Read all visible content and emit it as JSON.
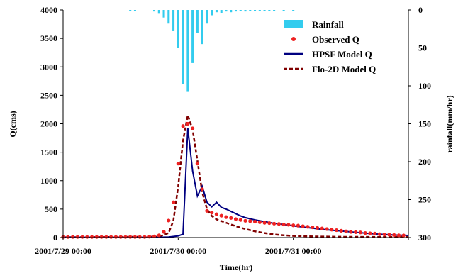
{
  "chart_data": {
    "type": "bar+line+scatter",
    "title": "",
    "xlabel": "Time(hr)",
    "ylabel_left": "Q(cms)",
    "ylabel_right": "rainfall(mm/hr)",
    "x_range_hours": [
      0,
      72
    ],
    "x_ticks": [
      {
        "hour": 0,
        "label": "2001/7/29 00:00"
      },
      {
        "hour": 24,
        "label": "2001/7/30 00:00"
      },
      {
        "hour": 48,
        "label": "2001/7/31 00:00"
      }
    ],
    "ylim_left": [
      0,
      4000
    ],
    "yticks_left": [
      0,
      500,
      1000,
      1500,
      2000,
      2500,
      3000,
      3500,
      4000
    ],
    "ylim_right_reversed": [
      0,
      300
    ],
    "yticks_right": [
      0,
      50,
      100,
      150,
      200,
      250,
      300
    ],
    "legend": {
      "placement": "top-right",
      "items": [
        "Rainfall",
        "Observed Q",
        "HPSF Model Q",
        "Flo-2D Model Q"
      ]
    },
    "colors": {
      "rainfall": "#33ccee",
      "observed": "#ee2222",
      "hpsf": "#000080",
      "flo2d": "#800000"
    },
    "series": {
      "rainfall": [
        {
          "hour": 14,
          "value": 1
        },
        {
          "hour": 15,
          "value": 1
        },
        {
          "hour": 19,
          "value": 2
        },
        {
          "hour": 20,
          "value": 5
        },
        {
          "hour": 21,
          "value": 10
        },
        {
          "hour": 22,
          "value": 18
        },
        {
          "hour": 23,
          "value": 28
        },
        {
          "hour": 24,
          "value": 50
        },
        {
          "hour": 25,
          "value": 98
        },
        {
          "hour": 26,
          "value": 108
        },
        {
          "hour": 27,
          "value": 70
        },
        {
          "hour": 28,
          "value": 30
        },
        {
          "hour": 29,
          "value": 45
        },
        {
          "hour": 30,
          "value": 18
        },
        {
          "hour": 31,
          "value": 7
        },
        {
          "hour": 32,
          "value": 3
        },
        {
          "hour": 33,
          "value": 4
        },
        {
          "hour": 34,
          "value": 2
        },
        {
          "hour": 35,
          "value": 3
        },
        {
          "hour": 36,
          "value": 2
        },
        {
          "hour": 37,
          "value": 1
        },
        {
          "hour": 38,
          "value": 2
        },
        {
          "hour": 39,
          "value": 1
        },
        {
          "hour": 40,
          "value": 1
        },
        {
          "hour": 41,
          "value": 1
        },
        {
          "hour": 42,
          "value": 1
        },
        {
          "hour": 43,
          "value": 1
        },
        {
          "hour": 44,
          "value": 1
        },
        {
          "hour": 46,
          "value": 1
        },
        {
          "hour": 48,
          "value": 1
        }
      ],
      "observed_q": [
        {
          "hour": 0,
          "value": 10
        },
        {
          "hour": 1,
          "value": 10
        },
        {
          "hour": 2,
          "value": 10
        },
        {
          "hour": 3,
          "value": 10
        },
        {
          "hour": 4,
          "value": 10
        },
        {
          "hour": 5,
          "value": 10
        },
        {
          "hour": 6,
          "value": 10
        },
        {
          "hour": 7,
          "value": 10
        },
        {
          "hour": 8,
          "value": 10
        },
        {
          "hour": 9,
          "value": 10
        },
        {
          "hour": 10,
          "value": 10
        },
        {
          "hour": 11,
          "value": 10
        },
        {
          "hour": 12,
          "value": 10
        },
        {
          "hour": 13,
          "value": 10
        },
        {
          "hour": 14,
          "value": 10
        },
        {
          "hour": 15,
          "value": 10
        },
        {
          "hour": 16,
          "value": 10
        },
        {
          "hour": 17,
          "value": 10
        },
        {
          "hour": 18,
          "value": 15
        },
        {
          "hour": 19,
          "value": 20
        },
        {
          "hour": 20,
          "value": 40
        },
        {
          "hour": 21,
          "value": 100
        },
        {
          "hour": 22,
          "value": 300
        },
        {
          "hour": 23,
          "value": 620
        },
        {
          "hour": 24,
          "value": 1300
        },
        {
          "hour": 25,
          "value": 1960
        },
        {
          "hour": 26,
          "value": 2000
        },
        {
          "hour": 27,
          "value": 1920
        },
        {
          "hour": 28,
          "value": 1300
        },
        {
          "hour": 29,
          "value": 850
        },
        {
          "hour": 30,
          "value": 470
        },
        {
          "hour": 31,
          "value": 440
        },
        {
          "hour": 32,
          "value": 410
        },
        {
          "hour": 33,
          "value": 385
        },
        {
          "hour": 34,
          "value": 360
        },
        {
          "hour": 35,
          "value": 345
        },
        {
          "hour": 36,
          "value": 325
        },
        {
          "hour": 37,
          "value": 310
        },
        {
          "hour": 38,
          "value": 295
        },
        {
          "hour": 39,
          "value": 290
        },
        {
          "hour": 40,
          "value": 280
        },
        {
          "hour": 41,
          "value": 270
        },
        {
          "hour": 42,
          "value": 260
        },
        {
          "hour": 43,
          "value": 255
        },
        {
          "hour": 44,
          "value": 245
        },
        {
          "hour": 45,
          "value": 240
        },
        {
          "hour": 46,
          "value": 230
        },
        {
          "hour": 47,
          "value": 225
        },
        {
          "hour": 48,
          "value": 215
        },
        {
          "hour": 49,
          "value": 210
        },
        {
          "hour": 50,
          "value": 200
        },
        {
          "hour": 51,
          "value": 190
        },
        {
          "hour": 52,
          "value": 180
        },
        {
          "hour": 53,
          "value": 170
        },
        {
          "hour": 54,
          "value": 160
        },
        {
          "hour": 55,
          "value": 150
        },
        {
          "hour": 56,
          "value": 140
        },
        {
          "hour": 57,
          "value": 130
        },
        {
          "hour": 58,
          "value": 120
        },
        {
          "hour": 59,
          "value": 110
        },
        {
          "hour": 60,
          "value": 100
        },
        {
          "hour": 61,
          "value": 95
        },
        {
          "hour": 62,
          "value": 90
        },
        {
          "hour": 63,
          "value": 80
        },
        {
          "hour": 64,
          "value": 75
        },
        {
          "hour": 65,
          "value": 70
        },
        {
          "hour": 66,
          "value": 60
        },
        {
          "hour": 67,
          "value": 55
        },
        {
          "hour": 68,
          "value": 50
        },
        {
          "hour": 69,
          "value": 45
        },
        {
          "hour": 70,
          "value": 40
        },
        {
          "hour": 71,
          "value": 38
        }
      ],
      "hpsf_model_q": [
        {
          "hour": 0,
          "value": 5
        },
        {
          "hour": 20,
          "value": 5
        },
        {
          "hour": 22,
          "value": 10
        },
        {
          "hour": 24,
          "value": 30
        },
        {
          "hour": 25,
          "value": 60
        },
        {
          "hour": 26,
          "value": 1920
        },
        {
          "hour": 27,
          "value": 1170
        },
        {
          "hour": 28,
          "value": 730
        },
        {
          "hour": 29,
          "value": 900
        },
        {
          "hour": 30,
          "value": 620
        },
        {
          "hour": 31,
          "value": 540
        },
        {
          "hour": 32,
          "value": 620
        },
        {
          "hour": 33,
          "value": 530
        },
        {
          "hour": 34,
          "value": 500
        },
        {
          "hour": 35,
          "value": 460
        },
        {
          "hour": 36,
          "value": 420
        },
        {
          "hour": 37,
          "value": 380
        },
        {
          "hour": 38,
          "value": 350
        },
        {
          "hour": 40,
          "value": 310
        },
        {
          "hour": 42,
          "value": 280
        },
        {
          "hour": 44,
          "value": 250
        },
        {
          "hour": 46,
          "value": 230
        },
        {
          "hour": 48,
          "value": 205
        },
        {
          "hour": 50,
          "value": 185
        },
        {
          "hour": 52,
          "value": 165
        },
        {
          "hour": 54,
          "value": 145
        },
        {
          "hour": 56,
          "value": 130
        },
        {
          "hour": 58,
          "value": 115
        },
        {
          "hour": 60,
          "value": 100
        },
        {
          "hour": 62,
          "value": 85
        },
        {
          "hour": 64,
          "value": 70
        },
        {
          "hour": 66,
          "value": 60
        },
        {
          "hour": 68,
          "value": 50
        },
        {
          "hour": 70,
          "value": 42
        },
        {
          "hour": 72,
          "value": 38
        }
      ],
      "flo2d_model_q": [
        {
          "hour": 0,
          "value": 5
        },
        {
          "hour": 20,
          "value": 15
        },
        {
          "hour": 22,
          "value": 80
        },
        {
          "hour": 23,
          "value": 300
        },
        {
          "hour": 24,
          "value": 900
        },
        {
          "hour": 25,
          "value": 1700
        },
        {
          "hour": 26,
          "value": 2150
        },
        {
          "hour": 27,
          "value": 1900
        },
        {
          "hour": 28,
          "value": 1350
        },
        {
          "hour": 29,
          "value": 800
        },
        {
          "hour": 30,
          "value": 500
        },
        {
          "hour": 31,
          "value": 380
        },
        {
          "hour": 32,
          "value": 320
        },
        {
          "hour": 34,
          "value": 260
        },
        {
          "hour": 36,
          "value": 200
        },
        {
          "hour": 38,
          "value": 150
        },
        {
          "hour": 40,
          "value": 110
        },
        {
          "hour": 42,
          "value": 80
        },
        {
          "hour": 44,
          "value": 55
        },
        {
          "hour": 46,
          "value": 40
        },
        {
          "hour": 48,
          "value": 30
        },
        {
          "hour": 52,
          "value": 20
        },
        {
          "hour": 56,
          "value": 15
        },
        {
          "hour": 60,
          "value": 12
        },
        {
          "hour": 72,
          "value": 10
        }
      ]
    }
  }
}
